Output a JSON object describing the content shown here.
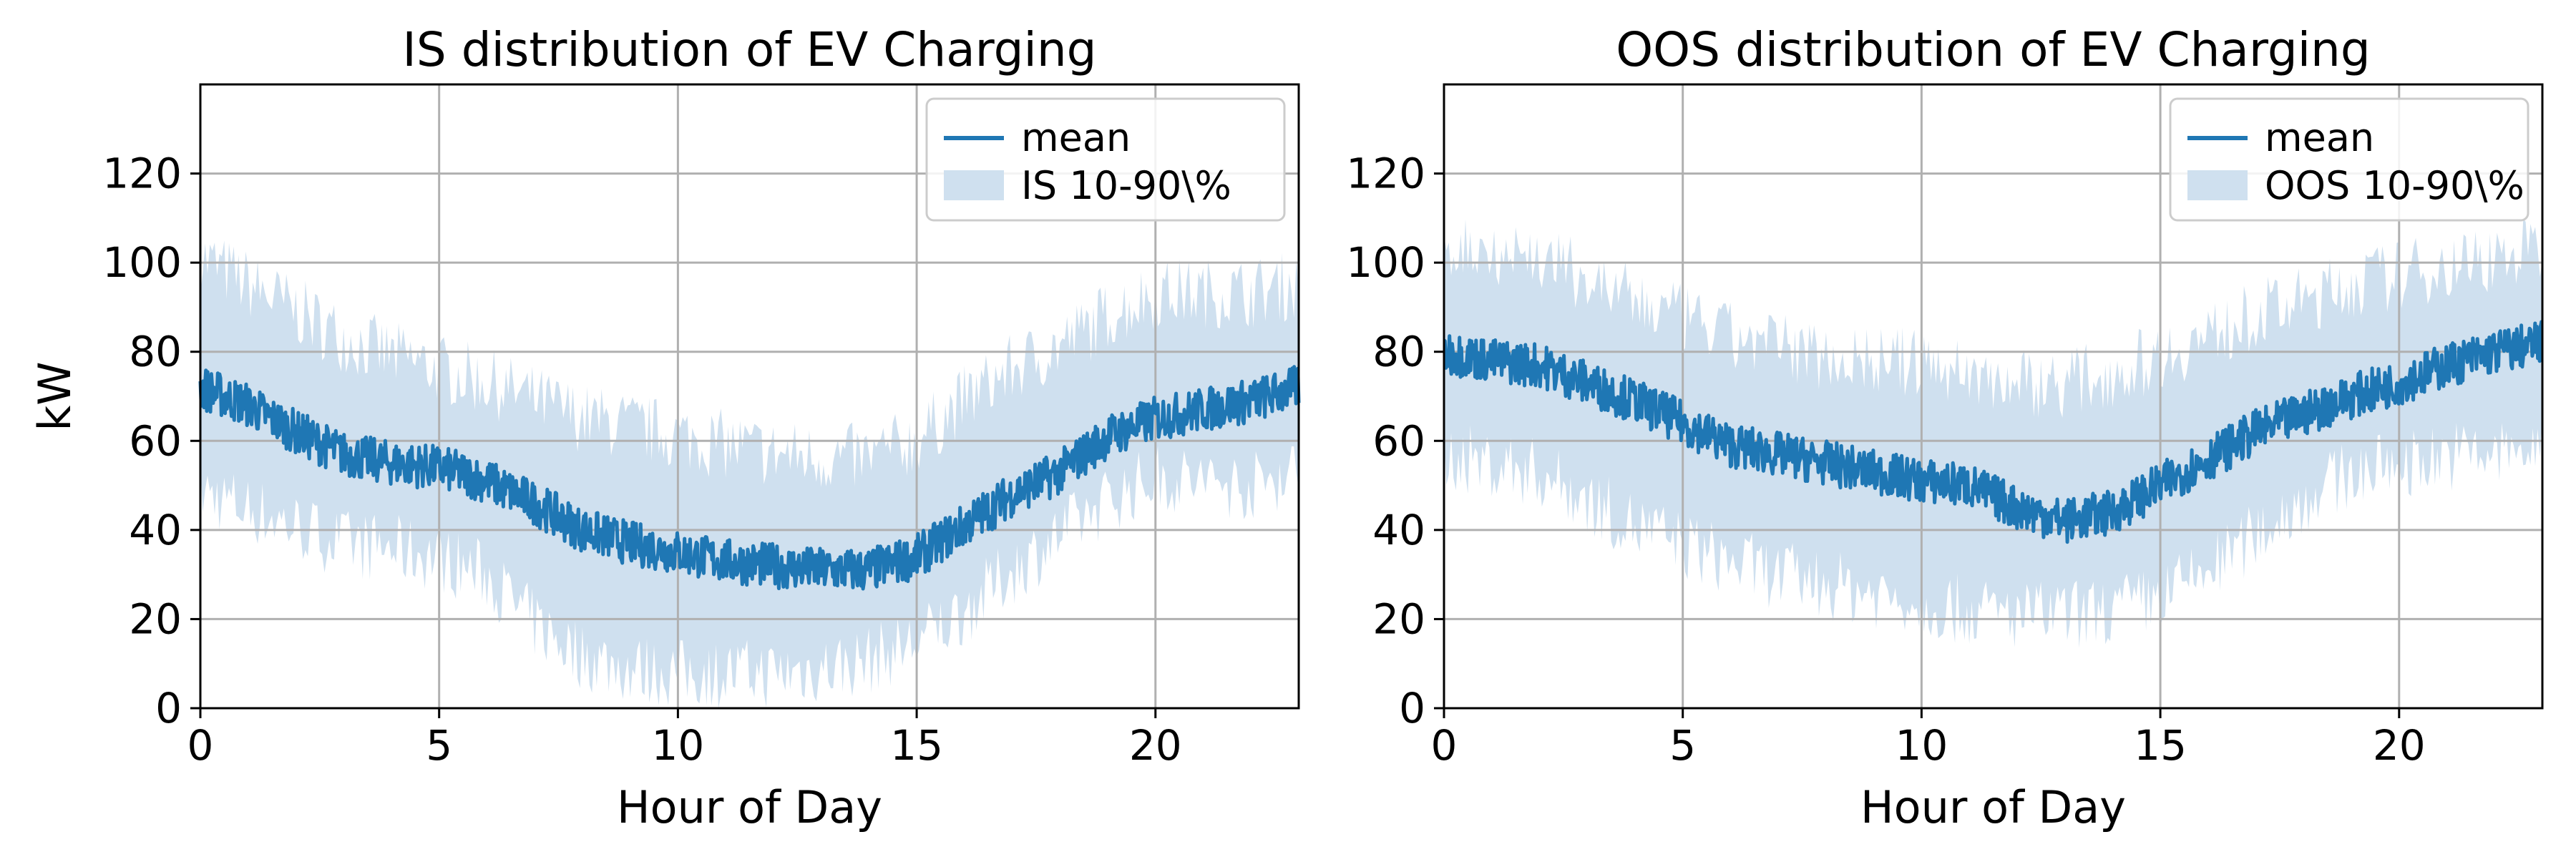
{
  "colors": {
    "mean_line": "#1f77b4",
    "band_fill": "#cfe0ef",
    "grid": "#b0b0b0",
    "axis": "#000000",
    "legend_border": "#cccccc"
  },
  "chart_data": [
    {
      "type": "line",
      "title": "IS distribution of EV Charging",
      "xlabel": "Hour of Day",
      "ylabel": "kW",
      "xlim": [
        0,
        23
      ],
      "ylim": [
        0,
        140
      ],
      "xticks": [
        "0",
        "5",
        "10",
        "15",
        "20"
      ],
      "xtick_values": [
        0,
        5,
        10,
        15,
        20
      ],
      "yticks": [
        "0",
        "20",
        "40",
        "60",
        "80",
        "100",
        "120"
      ],
      "ytick_values": [
        0,
        20,
        40,
        60,
        80,
        100,
        120
      ],
      "grid": true,
      "legend_position": "top-right",
      "legend": [
        "mean",
        "IS 10-90\\%"
      ],
      "x": [
        0,
        1,
        2,
        3,
        4,
        5,
        6,
        7,
        8,
        9,
        10,
        11,
        12,
        13,
        14,
        15,
        16,
        17,
        18,
        19,
        20,
        21,
        22,
        23
      ],
      "series": [
        {
          "name": "mean",
          "values": [
            72,
            68,
            62,
            57,
            55,
            54,
            51,
            46,
            40,
            37,
            35,
            33,
            32,
            31,
            31,
            34,
            41,
            48,
            53,
            61,
            65,
            67,
            69,
            72
          ]
        },
        {
          "name": "IS 10-90\\%",
          "kind": "band",
          "lower": [
            52,
            48,
            44,
            40,
            39,
            37,
            33,
            22,
            15,
            12,
            11,
            11,
            11,
            12,
            14,
            18,
            25,
            34,
            42,
            50,
            55,
            54,
            53,
            57
          ],
          "upper": [
            98,
            92,
            86,
            80,
            76,
            73,
            70,
            66,
            62,
            60,
            58,
            56,
            54,
            53,
            53,
            57,
            66,
            73,
            78,
            85,
            90,
            90,
            90,
            92
          ]
        }
      ]
    },
    {
      "type": "line",
      "title": "OOS distribution of EV Charging",
      "xlabel": "Hour of Day",
      "ylabel": "",
      "xlim": [
        0,
        23
      ],
      "ylim": [
        0,
        140
      ],
      "xticks": [
        "0",
        "5",
        "10",
        "15",
        "20"
      ],
      "xtick_values": [
        0,
        5,
        10,
        15,
        20
      ],
      "yticks": [
        "0",
        "20",
        "40",
        "60",
        "80",
        "100",
        "120"
      ],
      "ytick_values": [
        0,
        20,
        40,
        60,
        80,
        100,
        120
      ],
      "grid": true,
      "legend_position": "top-right",
      "legend": [
        "mean",
        "OOS 10-90\\%"
      ],
      "x": [
        0,
        1,
        2,
        3,
        4,
        5,
        6,
        7,
        8,
        9,
        10,
        11,
        12,
        13,
        14,
        15,
        16,
        17,
        18,
        19,
        20,
        21,
        22,
        23
      ],
      "series": [
        {
          "name": "mean",
          "values": [
            80,
            78,
            77,
            73,
            69,
            64,
            59,
            57,
            55,
            53,
            51,
            50,
            45,
            42,
            44,
            50,
            56,
            62,
            66,
            70,
            73,
            77,
            80,
            82
          ]
        },
        {
          "name": "OOS 10-90\\%",
          "kind": "band",
          "lower": [
            60,
            58,
            56,
            50,
            44,
            40,
            36,
            33,
            31,
            29,
            27,
            25,
            24,
            24,
            25,
            28,
            34,
            42,
            50,
            56,
            58,
            60,
            60,
            62
          ],
          "upper": [
            100,
            100,
            98,
            93,
            88,
            84,
            80,
            78,
            76,
            75,
            74,
            72,
            70,
            70,
            72,
            76,
            80,
            85,
            88,
            92,
            94,
            96,
            98,
            100
          ]
        }
      ]
    }
  ]
}
